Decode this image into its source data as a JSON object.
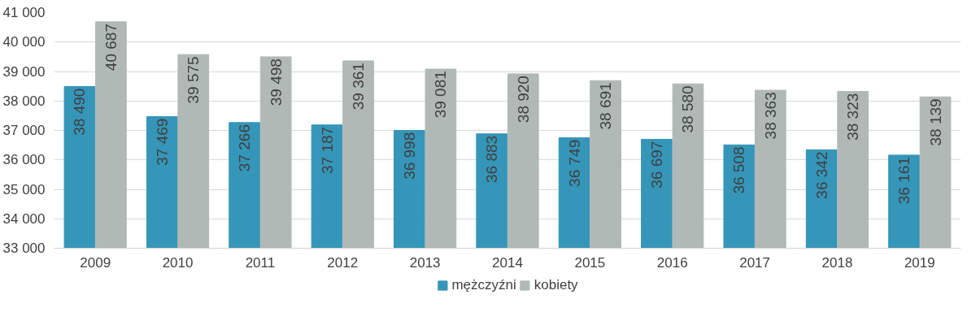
{
  "chart_data": {
    "type": "bar",
    "categories": [
      "2009",
      "2010",
      "2011",
      "2012",
      "2013",
      "2014",
      "2015",
      "2016",
      "2017",
      "2018",
      "2019"
    ],
    "series": [
      {
        "name": "mężczyźni",
        "color": "#3596b9",
        "values": [
          38490,
          37469,
          37266,
          37187,
          36998,
          36883,
          36749,
          36697,
          36508,
          36342,
          36161
        ],
        "value_labels": [
          "38 490",
          "37 469",
          "37 266",
          "37 187",
          "36 998",
          "36 883",
          "36 749",
          "36 697",
          "36 508",
          "36 342",
          "36 161"
        ]
      },
      {
        "name": "kobiety",
        "color": "#b1b9b7",
        "values": [
          40687,
          39575,
          39498,
          39361,
          39081,
          38920,
          38691,
          38580,
          38363,
          38323,
          38139
        ],
        "value_labels": [
          "40 687",
          "39 575",
          "39 498",
          "39 361",
          "39 081",
          "38 920",
          "38 691",
          "38 580",
          "38 363",
          "38 323",
          "38 139"
        ]
      }
    ],
    "ylim": [
      33000,
      41000
    ],
    "yticks": [
      {
        "value": 33000,
        "label": "33 000"
      },
      {
        "value": 34000,
        "label": "34 000"
      },
      {
        "value": 35000,
        "label": "35 000"
      },
      {
        "value": 36000,
        "label": "36 000"
      },
      {
        "value": 37000,
        "label": "37 000"
      },
      {
        "value": 38000,
        "label": "38 000"
      },
      {
        "value": 39000,
        "label": "39 000"
      },
      {
        "value": 40000,
        "label": "40 000"
      },
      {
        "value": 41000,
        "label": "41 000"
      }
    ],
    "grid": "y",
    "legend": "bottom"
  }
}
